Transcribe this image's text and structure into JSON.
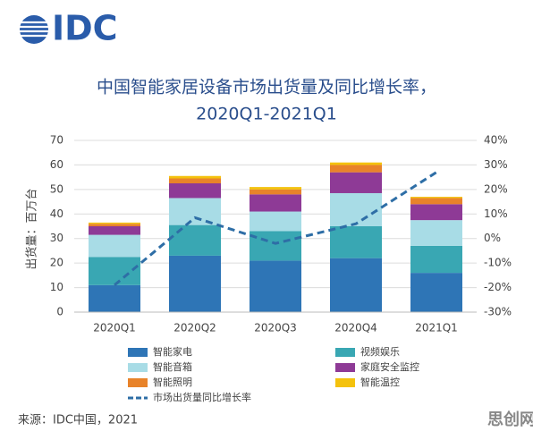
{
  "logo": "IDC",
  "source": "来源：IDC中国，2021",
  "watermark": "思创网",
  "chart_data": {
    "type": "bar",
    "stacked": true,
    "title": "中国智能家居设备市场出货量及同比增长率，",
    "subtitle": "2020Q1-2021Q1",
    "y_label": "出货量：百万台",
    "categories": [
      "2020Q1",
      "2020Q2",
      "2020Q3",
      "2020Q4",
      "2021Q1"
    ],
    "series": [
      {
        "name": "智能家电",
        "color": "#2e75b6",
        "values": [
          11,
          23,
          21,
          22,
          16
        ]
      },
      {
        "name": "视频娱乐",
        "color": "#39a7b3",
        "values": [
          11.5,
          12.5,
          12,
          13,
          11
        ]
      },
      {
        "name": "智能音箱",
        "color": "#a8dce6",
        "values": [
          9,
          11,
          8,
          13.5,
          10.5
        ]
      },
      {
        "name": "家庭安全监控",
        "color": "#8e3a96",
        "values": [
          3.5,
          6,
          7,
          8.5,
          6.5
        ]
      },
      {
        "name": "智能照明",
        "color": "#e8832a",
        "values": [
          1,
          2,
          2,
          3,
          2.5
        ]
      },
      {
        "name": "智能温控",
        "color": "#f4c20d",
        "values": [
          0.5,
          1,
          1,
          1,
          0.5
        ]
      },
      {
        "name": "市场出货量同比增长率",
        "type": "line",
        "axis": "y2",
        "color": "#2e6ea6",
        "values": [
          -19,
          8.5,
          -2,
          6,
          27
        ]
      }
    ],
    "ylim": [
      0,
      70
    ],
    "yticks": [
      0,
      10,
      20,
      30,
      40,
      50,
      60,
      70
    ],
    "y2lim": [
      -30,
      40
    ],
    "y2ticks": [
      {
        "value": -30,
        "label": "-30%"
      },
      {
        "value": -20,
        "label": "-20%"
      },
      {
        "value": -10,
        "label": "-10%"
      },
      {
        "value": 0,
        "label": "0%"
      },
      {
        "value": 10,
        "label": "10%"
      },
      {
        "value": 20,
        "label": "20%"
      },
      {
        "value": 30,
        "label": "30%"
      },
      {
        "value": 40,
        "label": "40%"
      }
    ],
    "grid": true
  }
}
